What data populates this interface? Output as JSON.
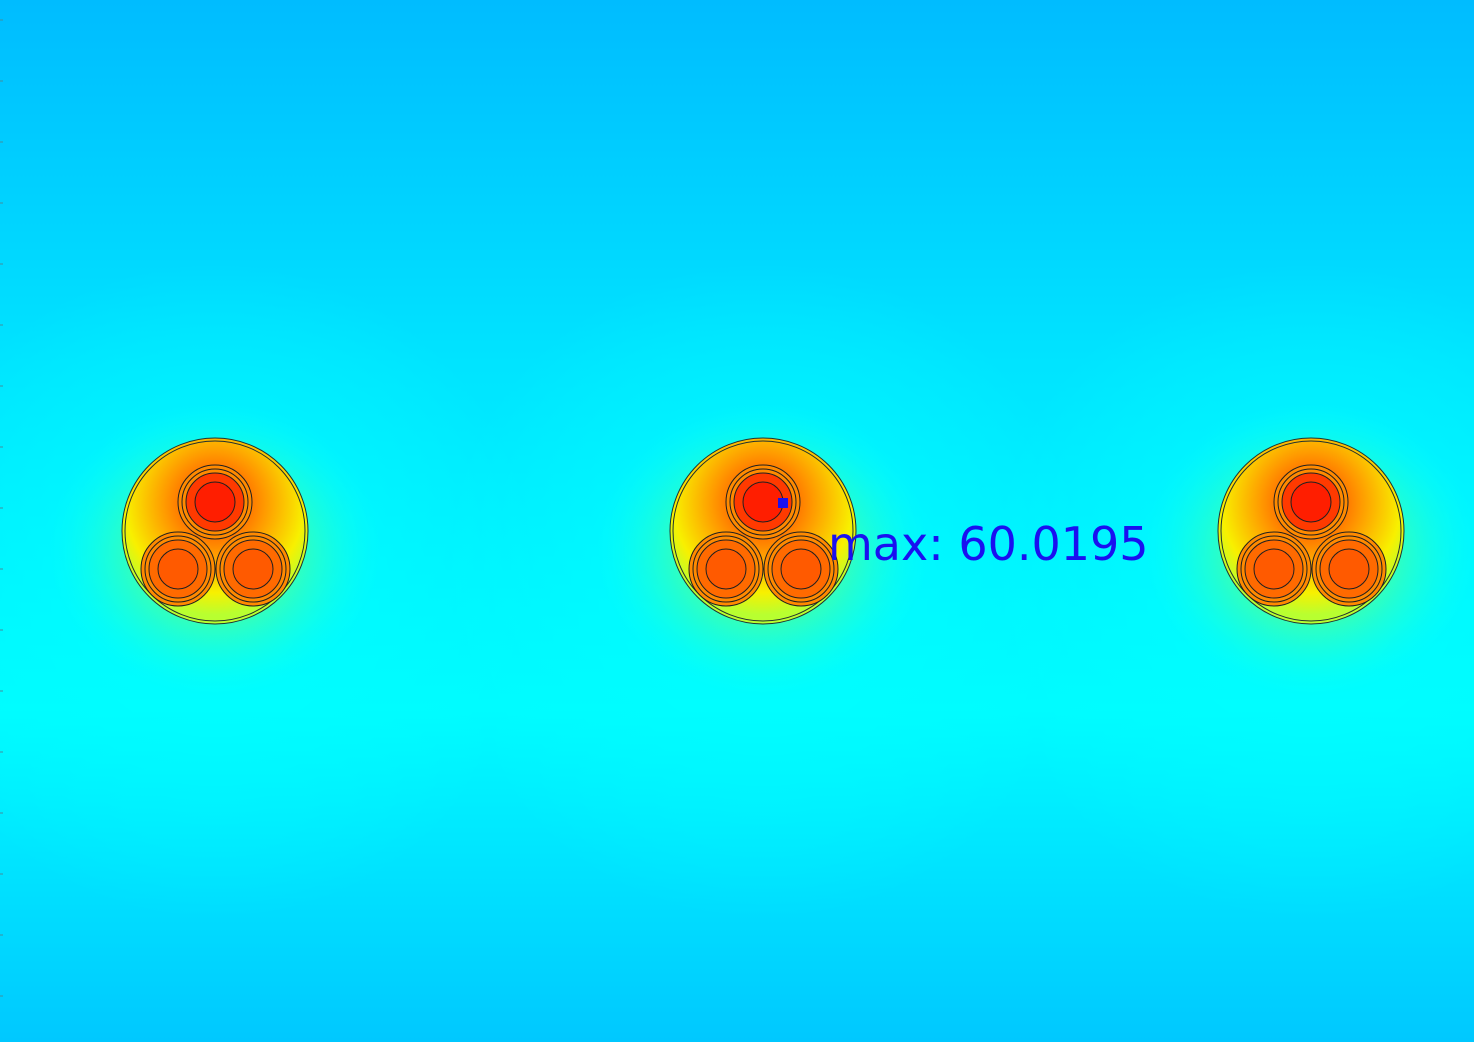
{
  "plot": {
    "annotation": "max: 60.0195"
  }
}
